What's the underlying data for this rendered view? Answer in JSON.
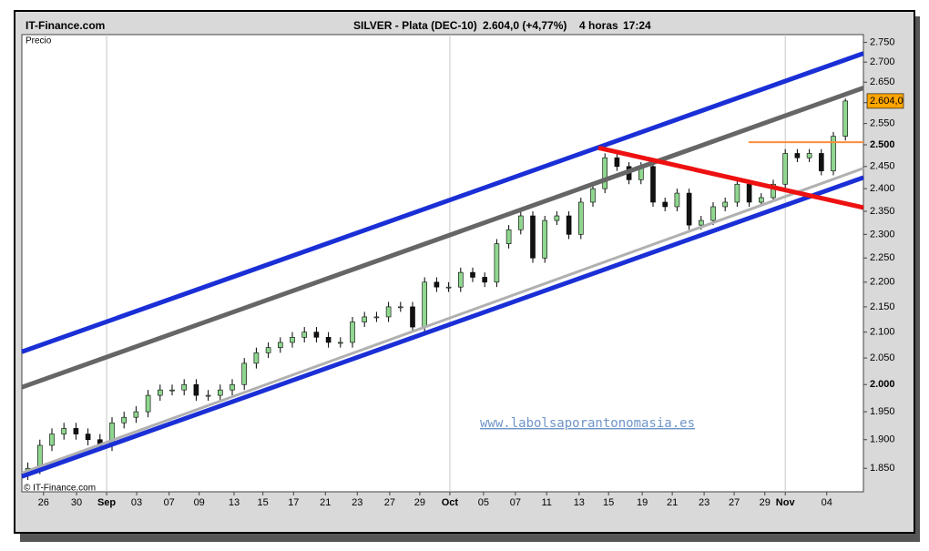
{
  "header": {
    "site": "IT-Finance.com",
    "instrument": "SILVER - Plata (DEC-10)",
    "quote": "2.604,0 (+4,77%)",
    "interval": "4 horas",
    "time": "17:24"
  },
  "chart_data": {
    "type": "candlestick",
    "y_label": "Precio",
    "copyright": "© IT-Finance.com",
    "watermark": "www.labolsaporantonomasia.es",
    "log_scale": true,
    "grid": true,
    "up_color": "#8fd68f",
    "down_color": "#111111",
    "xlim": [
      0,
      140
    ],
    "ylim": [
      1.81,
      2.77
    ],
    "xticks": [
      {
        "value": 3.6,
        "label": "26"
      },
      {
        "value": 9.1,
        "label": "30"
      },
      {
        "value": 14.1,
        "label": "Sep"
      },
      {
        "value": 19.1,
        "label": "03"
      },
      {
        "value": 24.5,
        "label": "07"
      },
      {
        "value": 29.5,
        "label": "09"
      },
      {
        "value": 35.3,
        "label": "13"
      },
      {
        "value": 40.1,
        "label": "15"
      },
      {
        "value": 45.2,
        "label": "17"
      },
      {
        "value": 50.5,
        "label": "21"
      },
      {
        "value": 55.8,
        "label": "23"
      },
      {
        "value": 61.2,
        "label": "27"
      },
      {
        "value": 66.2,
        "label": "29"
      },
      {
        "value": 71.2,
        "label": "Oct"
      },
      {
        "value": 76.8,
        "label": "05"
      },
      {
        "value": 82.1,
        "label": "07"
      },
      {
        "value": 87.3,
        "label": "11"
      },
      {
        "value": 92.7,
        "label": "13"
      },
      {
        "value": 97.6,
        "label": "15"
      },
      {
        "value": 103.2,
        "label": "19"
      },
      {
        "value": 108.2,
        "label": "21"
      },
      {
        "value": 113.5,
        "label": "23"
      },
      {
        "value": 118.5,
        "label": "27"
      },
      {
        "value": 123.6,
        "label": "29"
      },
      {
        "value": 127,
        "label": "Nov"
      },
      {
        "value": 133.9,
        "label": "04"
      }
    ],
    "yticks": [
      {
        "value": 1.85,
        "label": "1.850"
      },
      {
        "value": 1.9,
        "label": "1.900"
      },
      {
        "value": 1.95,
        "label": "1.950"
      },
      {
        "value": 2.0,
        "label": "2.000"
      },
      {
        "value": 2.05,
        "label": "2.050"
      },
      {
        "value": 2.1,
        "label": "2.100"
      },
      {
        "value": 2.15,
        "label": "2.150"
      },
      {
        "value": 2.2,
        "label": "2.200"
      },
      {
        "value": 2.25,
        "label": "2.250"
      },
      {
        "value": 2.3,
        "label": "2.300"
      },
      {
        "value": 2.35,
        "label": "2.350"
      },
      {
        "value": 2.4,
        "label": "2.400"
      },
      {
        "value": 2.45,
        "label": "2.450"
      },
      {
        "value": 2.5,
        "label": "2.500"
      },
      {
        "value": 2.55,
        "label": "2.550"
      },
      {
        "value": 2.6,
        "label": "2.600"
      },
      {
        "value": 2.65,
        "label": "2.650"
      },
      {
        "value": 2.7,
        "label": "2.700"
      },
      {
        "value": 2.75,
        "label": "2.750"
      }
    ],
    "last_price": {
      "value": 2.604,
      "label": "2.604,0"
    },
    "x": [
      1,
      3,
      5,
      7,
      9,
      11,
      13,
      15,
      17,
      19,
      21,
      23,
      25,
      27,
      29,
      31,
      33,
      35,
      37,
      39,
      41,
      43,
      45,
      47,
      49,
      51,
      53,
      55,
      57,
      59,
      61,
      63,
      65,
      67,
      69,
      71,
      73,
      75,
      77,
      79,
      81,
      83,
      85,
      87,
      89,
      91,
      93,
      95,
      97,
      99,
      101,
      103,
      105,
      107,
      109,
      111,
      113,
      115,
      117,
      119,
      121,
      123,
      125,
      127,
      129,
      131,
      133,
      135,
      137
    ],
    "open": [
      1.84,
      1.85,
      1.89,
      1.91,
      1.92,
      1.91,
      1.9,
      1.89,
      1.93,
      1.94,
      1.95,
      1.98,
      1.99,
      1.99,
      2.0,
      1.98,
      1.98,
      1.99,
      2.0,
      2.04,
      2.06,
      2.07,
      2.08,
      2.09,
      2.1,
      2.09,
      2.08,
      2.08,
      2.12,
      2.13,
      2.13,
      2.15,
      2.15,
      2.11,
      2.2,
      2.19,
      2.19,
      2.22,
      2.21,
      2.2,
      2.28,
      2.31,
      2.34,
      2.25,
      2.33,
      2.34,
      2.3,
      2.37,
      2.4,
      2.47,
      2.45,
      2.42,
      2.45,
      2.37,
      2.36,
      2.39,
      2.32,
      2.33,
      2.36,
      2.37,
      2.41,
      2.37,
      2.38,
      2.41,
      2.48,
      2.47,
      2.48,
      2.44,
      2.52
    ],
    "high": [
      1.86,
      1.9,
      1.92,
      1.93,
      1.93,
      1.92,
      1.91,
      1.94,
      1.95,
      1.96,
      1.99,
      2.0,
      2.0,
      2.01,
      2.01,
      1.99,
      2.0,
      2.01,
      2.05,
      2.07,
      2.08,
      2.09,
      2.1,
      2.11,
      2.11,
      2.1,
      2.09,
      2.13,
      2.14,
      2.14,
      2.16,
      2.16,
      2.16,
      2.21,
      2.21,
      2.2,
      2.23,
      2.23,
      2.22,
      2.29,
      2.32,
      2.35,
      2.35,
      2.34,
      2.35,
      2.35,
      2.38,
      2.41,
      2.48,
      2.48,
      2.46,
      2.46,
      2.46,
      2.38,
      2.4,
      2.4,
      2.34,
      2.37,
      2.38,
      2.42,
      2.42,
      2.39,
      2.42,
      2.49,
      2.49,
      2.49,
      2.49,
      2.53,
      2.61
    ],
    "low": [
      1.83,
      1.84,
      1.88,
      1.9,
      1.9,
      1.89,
      1.88,
      1.88,
      1.92,
      1.93,
      1.94,
      1.97,
      1.98,
      1.98,
      1.97,
      1.97,
      1.97,
      1.98,
      1.99,
      2.03,
      2.05,
      2.06,
      2.07,
      2.08,
      2.08,
      2.07,
      2.07,
      2.07,
      2.11,
      2.12,
      2.12,
      2.14,
      2.1,
      2.1,
      2.18,
      2.18,
      2.18,
      2.2,
      2.19,
      2.19,
      2.27,
      2.3,
      2.24,
      2.24,
      2.32,
      2.29,
      2.29,
      2.36,
      2.39,
      2.44,
      2.41,
      2.41,
      2.36,
      2.35,
      2.35,
      2.31,
      2.31,
      2.32,
      2.35,
      2.36,
      2.36,
      2.36,
      2.37,
      2.4,
      2.46,
      2.46,
      2.43,
      2.43,
      2.51
    ],
    "close": [
      1.85,
      1.89,
      1.91,
      1.92,
      1.91,
      1.9,
      1.89,
      1.93,
      1.94,
      1.95,
      1.98,
      1.99,
      1.99,
      2.0,
      1.98,
      1.98,
      1.99,
      2.0,
      2.04,
      2.06,
      2.07,
      2.08,
      2.09,
      2.1,
      2.09,
      2.08,
      2.08,
      2.12,
      2.13,
      2.13,
      2.15,
      2.15,
      2.11,
      2.2,
      2.19,
      2.19,
      2.22,
      2.21,
      2.2,
      2.28,
      2.31,
      2.34,
      2.25,
      2.33,
      2.34,
      2.3,
      2.37,
      2.4,
      2.47,
      2.45,
      2.42,
      2.45,
      2.37,
      2.36,
      2.39,
      2.32,
      2.33,
      2.36,
      2.37,
      2.41,
      2.37,
      2.38,
      2.41,
      2.48,
      2.47,
      2.48,
      2.44,
      2.52,
      2.604
    ],
    "trendlines": [
      {
        "color": "#1a2fd6",
        "width": 5,
        "x": [
          0,
          140
        ],
        "y": [
          2.062,
          2.722
        ]
      },
      {
        "color": "#666666",
        "width": 5,
        "x": [
          0,
          140
        ],
        "y": [
          1.995,
          2.636
        ]
      },
      {
        "color": "#b0b0b0",
        "width": 3,
        "x": [
          0,
          140
        ],
        "y": [
          1.842,
          2.446
        ]
      },
      {
        "color": "#1a2fd6",
        "width": 5,
        "x": [
          0,
          140
        ],
        "y": [
          1.836,
          2.425
        ]
      },
      {
        "color": "#ee1111",
        "width": 5,
        "x": [
          95.9,
          140
        ],
        "y": [
          2.493,
          2.358
        ]
      },
      {
        "color": "#ff8c3a",
        "width": 2,
        "x": [
          120.9,
          140
        ],
        "y": [
          2.506,
          2.506
        ]
      }
    ]
  }
}
